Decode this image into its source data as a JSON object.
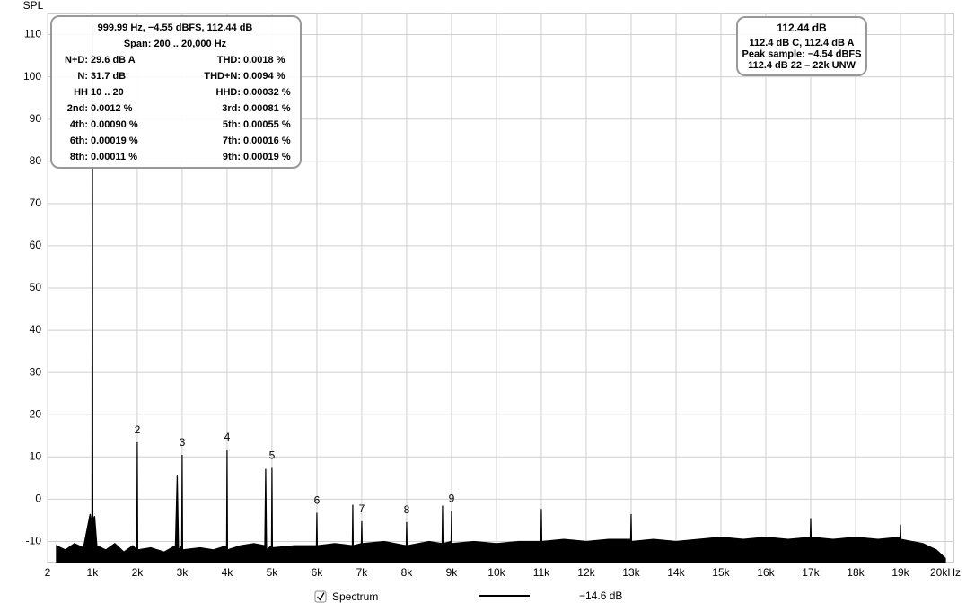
{
  "chart_data": {
    "type": "area",
    "y_label": "SPL",
    "xlim": [
      2,
      20180
    ],
    "ylim": [
      -15,
      115
    ],
    "xticks": [
      2,
      {
        "value": 1000,
        "label": "1k"
      },
      {
        "value": 2000,
        "label": "2k"
      },
      {
        "value": 3000,
        "label": "3k"
      },
      {
        "value": 4000,
        "label": "4k"
      },
      {
        "value": 5000,
        "label": "5k"
      },
      {
        "value": 6000,
        "label": "6k"
      },
      {
        "value": 7000,
        "label": "7k"
      },
      {
        "value": 8000,
        "label": "8k"
      },
      {
        "value": 9000,
        "label": "9k"
      },
      {
        "value": 10000,
        "label": "10k"
      },
      {
        "value": 11000,
        "label": "11k"
      },
      {
        "value": 12000,
        "label": "12k"
      },
      {
        "value": 13000,
        "label": "13k"
      },
      {
        "value": 14000,
        "label": "14k"
      },
      {
        "value": 15000,
        "label": "15k"
      },
      {
        "value": 16000,
        "label": "16k"
      },
      {
        "value": 17000,
        "label": "17k"
      },
      {
        "value": 18000,
        "label": "18k"
      },
      {
        "value": 19000,
        "label": "19k"
      },
      {
        "value": 20000,
        "label": "20kHz"
      }
    ],
    "yticks": [
      -10,
      0,
      10,
      20,
      30,
      40,
      50,
      60,
      70,
      80,
      90,
      100,
      110
    ],
    "grid": true,
    "x": [
      200,
      400,
      600,
      800,
      950,
      990,
      1000,
      1010,
      1050,
      1100,
      1300,
      1500,
      1700,
      1900,
      1990,
      2000,
      2010,
      2300,
      2600,
      2850,
      2890,
      2920,
      2990,
      3000,
      3010,
      3400,
      3700,
      3990,
      4000,
      4010,
      4300,
      4600,
      4840,
      4860,
      4880,
      4990,
      5000,
      5010,
      5500,
      5990,
      6000,
      6010,
      6400,
      6790,
      6800,
      6810,
      6990,
      7000,
      7010,
      7500,
      7990,
      8000,
      8010,
      8500,
      8790,
      8800,
      8810,
      8990,
      9000,
      9010,
      9500,
      10000,
      10500,
      10990,
      11000,
      11010,
      11500,
      12000,
      12500,
      12990,
      13000,
      13010,
      13500,
      14000,
      14500,
      15000,
      15500,
      16000,
      16500,
      16990,
      17000,
      17010,
      17500,
      18000,
      18500,
      18990,
      19000,
      19010,
      19500,
      19800,
      20000
    ],
    "series": [
      {
        "name": "Spectrum",
        "color": "#000000",
        "legend_level": "−14.6 dB",
        "values": [
          -11,
          -12,
          -10.5,
          -11.5,
          -3.5,
          -6,
          112.4,
          -5,
          -4,
          -11,
          -12,
          -10.5,
          -12.5,
          -11,
          -12,
          13.5,
          -12,
          -11.5,
          -12.5,
          -11,
          5.8,
          -12,
          -11,
          10.5,
          -12,
          -11.5,
          -12,
          -11,
          11.8,
          -12,
          -11,
          -10.5,
          -11,
          7.2,
          -12,
          -11,
          7.4,
          -11.5,
          -11,
          -11,
          -3.2,
          -11,
          -10.5,
          -11,
          -1.3,
          -11,
          -10.5,
          -5.2,
          -10.5,
          -10,
          -11,
          -5.4,
          -11,
          -10,
          -10.5,
          -1.5,
          -10.5,
          -10,
          -2.8,
          -10.5,
          -10,
          -10.5,
          -10,
          -10,
          -2.3,
          -10,
          -9.5,
          -10,
          -9.5,
          -9.5,
          -3.5,
          -10,
          -9.5,
          -10,
          -9.5,
          -9,
          -9.5,
          -9,
          -9.5,
          -9,
          -4.5,
          -9,
          -9.5,
          -9,
          -9.5,
          -9,
          -6,
          -9.5,
          -10.5,
          -12,
          -14
        ]
      }
    ],
    "harmonics": [
      {
        "label": "2",
        "x": 2000
      },
      {
        "label": "3",
        "x": 3000
      },
      {
        "label": "4",
        "x": 4000
      },
      {
        "label": "5",
        "x": 5000
      },
      {
        "label": "6",
        "x": 6000
      },
      {
        "label": "7",
        "x": 7000
      },
      {
        "label": "8",
        "x": 8000
      },
      {
        "label": "9",
        "x": 9000
      }
    ],
    "info_panel": {
      "lines": [
        "999.99 Hz, −4.55 dBFS, 112.44 dB",
        "Span: 200 .. 20,000 Hz"
      ],
      "rows": [
        [
          {
            "label": "N+D:",
            "value": "29.6 dB A"
          },
          {
            "label": "THD:",
            "value": "0.0018 %"
          }
        ],
        [
          {
            "label": "N:",
            "value": "31.7 dB"
          },
          {
            "label": "THD+N:",
            "value": "0.0094 %"
          }
        ],
        [
          {
            "label": "HH",
            "value": "10 .. 20"
          },
          {
            "label": "HHD:",
            "value": "0.00032 %"
          }
        ],
        [
          {
            "label": "2nd:",
            "value": "0.0012 %"
          },
          {
            "label": "3rd:",
            "value": "0.00081 %"
          }
        ],
        [
          {
            "label": "4th:",
            "value": "0.00090 %"
          },
          {
            "label": "5th:",
            "value": "0.00055 %"
          }
        ],
        [
          {
            "label": "6th:",
            "value": "0.00019 %"
          },
          {
            "label": "7th:",
            "value": "0.00016 %"
          }
        ],
        [
          {
            "label": "8th:",
            "value": "0.00011 %"
          },
          {
            "label": "9th:",
            "value": "0.00019 %"
          }
        ]
      ]
    },
    "level_panel": {
      "title": "112.44 dB",
      "lines": [
        "112.4 dB C, 112.4 dB A",
        "Peak sample: −4.54 dBFS",
        "112.4 dB 22 – 22k UNW"
      ]
    }
  }
}
